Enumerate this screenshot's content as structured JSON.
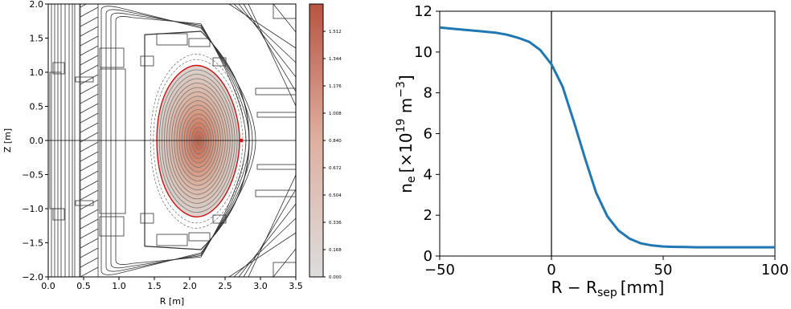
{
  "chart_data": [
    {
      "type": "heatmap",
      "xlabel": "R [m]",
      "ylabel": "Z [m]",
      "xlim": [
        0.0,
        3.5
      ],
      "ylim": [
        -2.0,
        2.0
      ],
      "x_ticks": [
        "0.0",
        "0.5",
        "1.0",
        "1.5",
        "2.0",
        "2.5",
        "3.0",
        "3.5"
      ],
      "y_ticks": [
        "−2.0",
        "−1.5",
        "−1.0",
        "−0.5",
        "0.0",
        "0.5",
        "1.0",
        "1.5",
        "2.0"
      ],
      "colorbar": {
        "range": [
          0.0,
          1.68
        ],
        "ticks": [
          "0.000",
          "0.168",
          "0.336",
          "0.504",
          "0.672",
          "0.840",
          "1.008",
          "1.176",
          "1.344",
          "1.512"
        ],
        "color_low": "#dddddd",
        "color_high": "#b85442"
      },
      "magnetic_axis": {
        "R": 2.12,
        "Z": 0.0,
        "value": 1.68
      },
      "separatrix": {
        "color": "#cc1111",
        "R_inner": 1.56,
        "R_outer": 2.73,
        "Z_top": 1.1,
        "Z_bottom": -1.12
      },
      "midplane_line": {
        "Z": 0.0
      },
      "grid": false
    },
    {
      "type": "line",
      "xlabel": "R − R",
      "xlabel_sub": "sep",
      "xlabel_unit": "[mm]",
      "ylabel": "n",
      "ylabel_sub": "e",
      "ylabel_unit_prefix": "[×10",
      "ylabel_unit_exp": "19",
      "ylabel_unit_suffix": " m",
      "ylabel_unit_exp2": "−3",
      "ylabel_unit_close": "]",
      "xlim": [
        -50,
        100
      ],
      "ylim": [
        0,
        12
      ],
      "x_ticks": [
        "−50",
        "0",
        "50",
        "100"
      ],
      "y_ticks": [
        "0",
        "2",
        "4",
        "6",
        "8",
        "10",
        "12"
      ],
      "vertical_line_x": 0,
      "color": "#1f77b4",
      "series": [
        {
          "x": [
            -50,
            -45,
            -40,
            -35,
            -30,
            -25,
            -20,
            -15,
            -10,
            -5,
            0,
            5,
            10,
            15,
            20,
            25,
            30,
            35,
            40,
            45,
            50,
            55,
            60,
            65,
            70,
            75,
            80,
            85,
            90,
            95,
            100
          ],
          "values": [
            11.2,
            11.15,
            11.1,
            11.05,
            11.0,
            10.95,
            10.85,
            10.7,
            10.5,
            10.1,
            9.4,
            8.3,
            6.6,
            4.8,
            3.1,
            1.95,
            1.25,
            0.85,
            0.62,
            0.52,
            0.47,
            0.45,
            0.44,
            0.43,
            0.43,
            0.43,
            0.43,
            0.43,
            0.43,
            0.43,
            0.43
          ]
        }
      ],
      "grid": false
    }
  ]
}
